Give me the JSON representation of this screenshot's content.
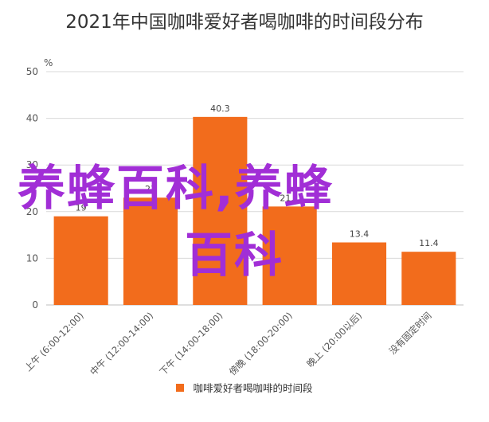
{
  "title": "2021年中国咖啡爱好者喝咖啡的时间段分布",
  "watermark": {
    "line1": "养蜂百科,养蜂",
    "line2": "百科"
  },
  "colors": {
    "bar": "#f26c1c",
    "grid": "#d9d9d9",
    "watermark": "#a12ed6"
  },
  "chart_data": {
    "type": "bar",
    "title": "2021年中国咖啡爱好者喝咖啡的时间段分布",
    "ylabel": "%",
    "xlabel": "",
    "ylim": [
      0,
      50
    ],
    "yticks": [
      "0",
      "10",
      "20",
      "30",
      "40",
      "50"
    ],
    "grid": true,
    "legend_position": "bottom",
    "categories": [
      "上午 (6:00-12:00)",
      "中午 (12:00-14:00)",
      "下午 (14:00-18:00)",
      "傍晚 (18:00-20:00)",
      "晚上 (20:00以后)",
      "没有固定时间"
    ],
    "series": [
      {
        "name": "咖啡爱好者喝咖啡的时间段",
        "values": [
          19.0,
          23.0,
          40.3,
          21.1,
          13.4,
          11.4
        ],
        "labels": [
          "19",
          "23",
          "40.3",
          "21.1",
          "13.4",
          "11.4"
        ]
      }
    ]
  }
}
